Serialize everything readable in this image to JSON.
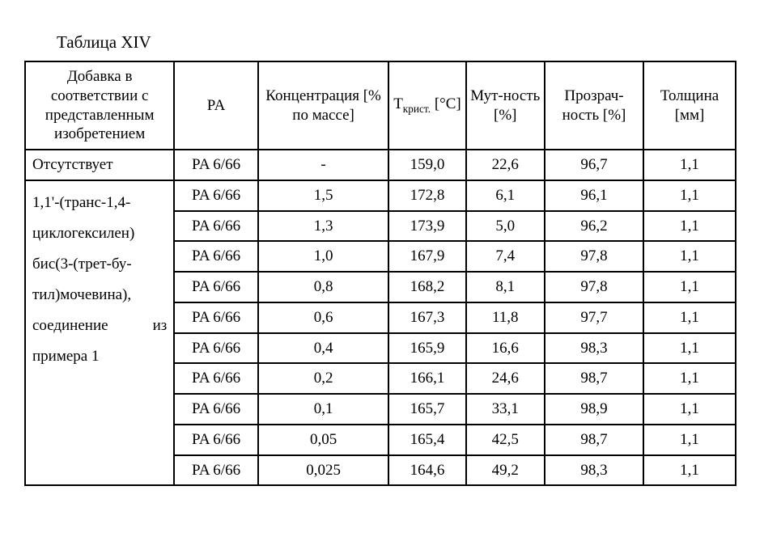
{
  "caption": "Таблица XIV",
  "headers": {
    "additive": "Добавка в соответствии с представленным изобретением",
    "pa": "PA",
    "conc": "Концентрация [% по массе]",
    "tcrist_pre": "T",
    "tcrist_sub": "крист.",
    "tcrist_unit": " [°C]",
    "haze": "Мут-ность [%]",
    "clarity": "Прозрач-ность [%]",
    "thickness": "Толщина [мм]"
  },
  "row_none": {
    "label": "Отсутствует",
    "pa": "PA 6/66",
    "conc": "-",
    "t": "159,0",
    "haze": "22,6",
    "clarity": "96,7",
    "thick": "1,1"
  },
  "compound_label": "1,1'-(транс-1,4-циклогексилен) бис(3-(трет-бу-тил)мочевина), соединение из примера 1",
  "rows": [
    {
      "pa": "PA 6/66",
      "conc": "1,5",
      "t": "172,8",
      "haze": "6,1",
      "clarity": "96,1",
      "thick": "1,1"
    },
    {
      "pa": "PA 6/66",
      "conc": "1,3",
      "t": "173,9",
      "haze": "5,0",
      "clarity": "96,2",
      "thick": "1,1"
    },
    {
      "pa": "PA 6/66",
      "conc": "1,0",
      "t": "167,9",
      "haze": "7,4",
      "clarity": "97,8",
      "thick": "1,1"
    },
    {
      "pa": "PA 6/66",
      "conc": "0,8",
      "t": "168,2",
      "haze": "8,1",
      "clarity": "97,8",
      "thick": "1,1"
    },
    {
      "pa": "PA 6/66",
      "conc": "0,6",
      "t": "167,3",
      "haze": "11,8",
      "clarity": "97,7",
      "thick": "1,1"
    },
    {
      "pa": "PA 6/66",
      "conc": "0,4",
      "t": "165,9",
      "haze": "16,6",
      "clarity": "98,3",
      "thick": "1,1"
    },
    {
      "pa": "PA 6/66",
      "conc": "0,2",
      "t": "166,1",
      "haze": "24,6",
      "clarity": "98,7",
      "thick": "1,1"
    },
    {
      "pa": "PA 6/66",
      "conc": "0,1",
      "t": "165,7",
      "haze": "33,1",
      "clarity": "98,9",
      "thick": "1,1"
    },
    {
      "pa": "PA 6/66",
      "conc": "0,05",
      "t": "165,4",
      "haze": "42,5",
      "clarity": "98,7",
      "thick": "1,1"
    },
    {
      "pa": "PA 6/66",
      "conc": "0,025",
      "t": "164,6",
      "haze": "49,2",
      "clarity": "98,3",
      "thick": "1,1"
    }
  ]
}
